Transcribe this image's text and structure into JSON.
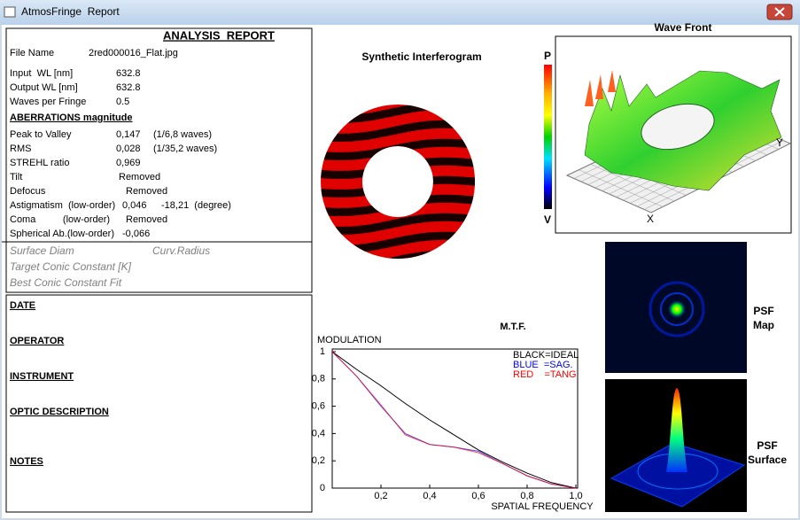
{
  "window": {
    "title": "AtmosFringe  Report"
  },
  "report": {
    "title": "ANALYSIS  REPORT",
    "rows": [
      [
        "File Name",
        "2red000016_Flat.jpg"
      ],
      [
        "Input  WL [nm]",
        "632.8"
      ],
      [
        "Output WL [nm]",
        "632.8"
      ],
      [
        "Waves per Fringe",
        "0.5"
      ]
    ],
    "aberrations_heading": "ABERRATIONS magnitude",
    "aberrations": [
      [
        "Peak to Valley",
        "0,147",
        "(1/6,8 waves)"
      ],
      [
        "RMS",
        "0,028",
        "(1/35,2 waves)"
      ],
      [
        "STREHL ratio",
        "0,969"
      ],
      [
        "Tilt",
        "Removed"
      ],
      [
        "Defocus",
        "Removed"
      ],
      [
        "Astigmatism  (low-order)",
        "0,046",
        "-18,21  (degree)"
      ],
      [
        "Coma          (low-order)",
        "Removed"
      ],
      [
        "Spherical Ab.(low-order)",
        "-0,066"
      ]
    ],
    "surface": [
      [
        "Surface Diam",
        "Curv.Radius"
      ],
      [
        "Target Conic Constant [K]"
      ],
      [
        "Best Conic Constant Fit"
      ]
    ]
  },
  "notes": [
    "DATE",
    "OPERATOR",
    "INSTRUMENT",
    "OPTIC DESCRIPTION",
    "NOTES"
  ],
  "interferogram": {
    "title": "Synthetic Interferogram"
  },
  "wavefront": {
    "title": "Wave Front",
    "scale_top": "P",
    "scale_bottom": "V",
    "x_axis": "X",
    "y_axis": "Y"
  },
  "psf": {
    "map": [
      "PSF",
      "Map"
    ],
    "surface": [
      "PSF",
      "Surface"
    ]
  },
  "chart_data": {
    "type": "line",
    "title": "M.T.F.",
    "ylabel": "MODULATION",
    "xlabel": "SPATIAL FREQUENCY",
    "x": [
      0,
      0.1,
      0.2,
      0.3,
      0.4,
      0.5,
      0.6,
      0.7,
      0.8,
      0.9,
      1
    ],
    "series": [
      {
        "name": "BLACK=IDEAL",
        "color": "#000000",
        "values": [
          1,
          0.87,
          0.75,
          0.62,
          0.5,
          0.39,
          0.28,
          0.19,
          0.11,
          0.04,
          0
        ]
      },
      {
        "name": "BLUE  =SAG.",
        "color": "#0000ff",
        "values": [
          1,
          0.82,
          0.6,
          0.4,
          0.32,
          0.3,
          0.27,
          0.18,
          0.09,
          0.03,
          0
        ]
      },
      {
        "name": "RED    =TANG",
        "color": "#ff0000",
        "values": [
          1,
          0.82,
          0.61,
          0.39,
          0.32,
          0.3,
          0.26,
          0.18,
          0.09,
          0.03,
          0
        ]
      }
    ],
    "xlim": [
      0,
      1
    ],
    "ylim": [
      0,
      1
    ],
    "xticks": [
      {
        "value": 0.2,
        "label": "0,2"
      },
      {
        "value": 0.4,
        "label": "0,4"
      },
      {
        "value": 0.6,
        "label": "0,6"
      },
      {
        "value": 0.8,
        "label": "0,8"
      },
      {
        "value": 1,
        "label": "1,0"
      }
    ],
    "yticks": [
      0,
      {
        "value": 0.2,
        "label": "0,2"
      },
      {
        "value": 0.4,
        "label": "0,4"
      },
      {
        "value": 0.6,
        "label": "0,6"
      },
      {
        "value": 0.8,
        "label": "0,8"
      },
      1
    ]
  }
}
